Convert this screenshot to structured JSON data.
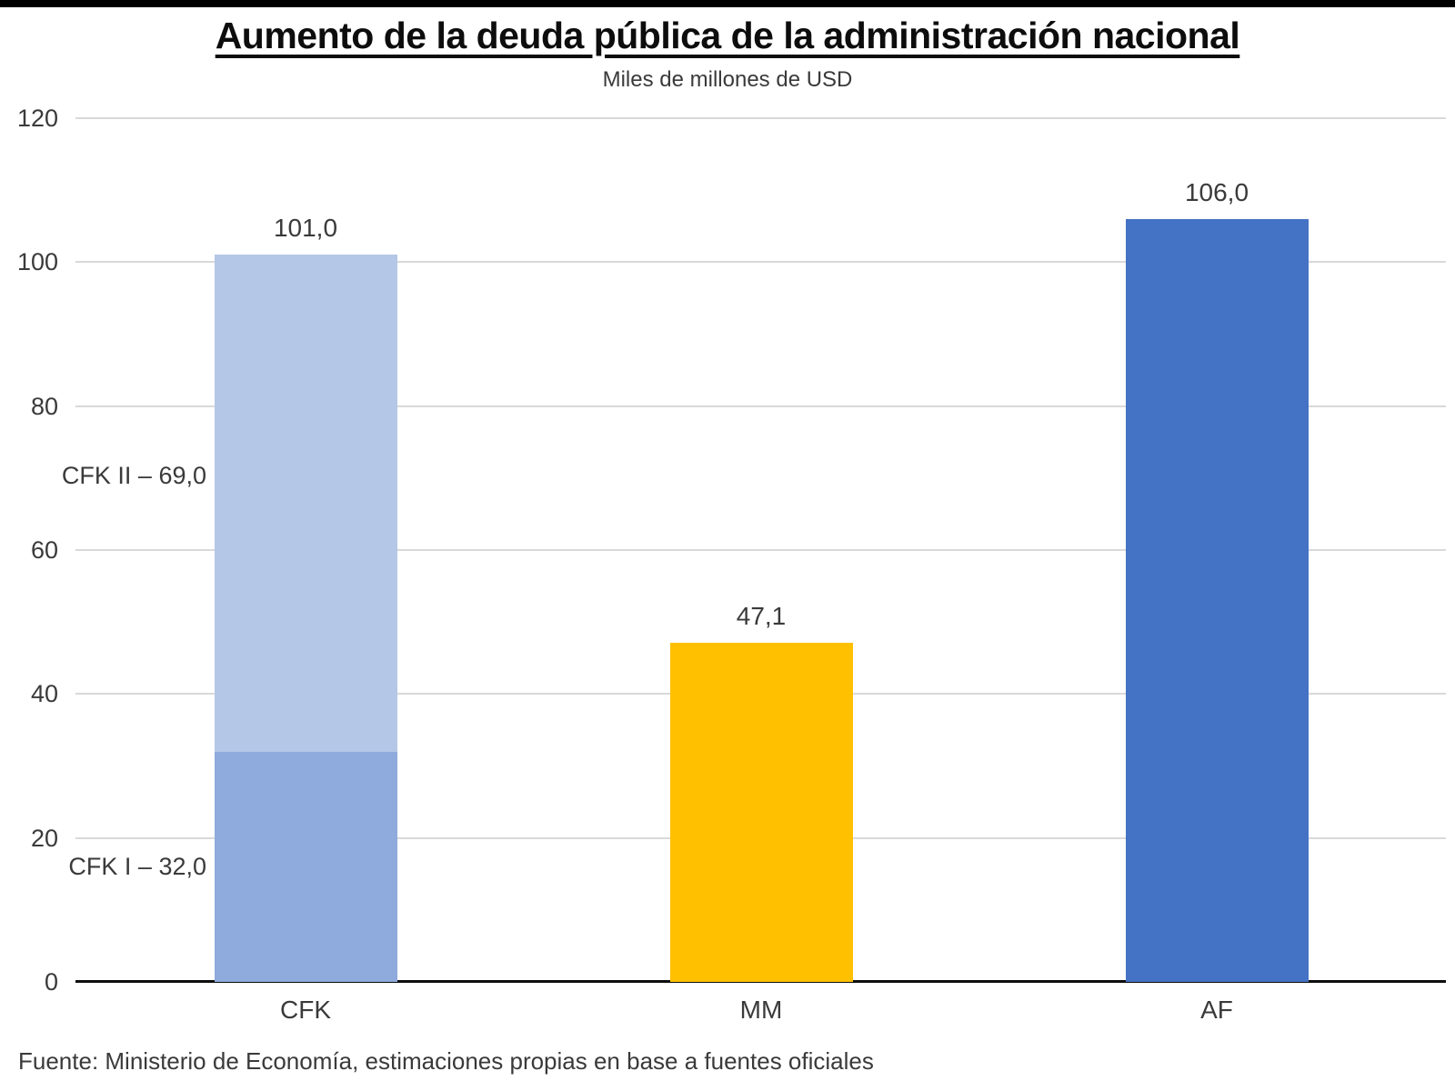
{
  "page": {
    "title": "Aumento de la deuda pública de la administración nacional",
    "subtitle": "Miles de millones de USD",
    "source": "Fuente: Ministerio de Economía, estimaciones propias en base a fuentes oficiales"
  },
  "chart_data": {
    "type": "bar",
    "title": "Aumento de la deuda pública de la administración nacional",
    "subtitle": "Miles de millones de USD",
    "ylabel": "Miles de millones de USD",
    "ylim": [
      0,
      120
    ],
    "grid": true,
    "y_ticks": [
      {
        "value": 0,
        "label": "0"
      },
      {
        "value": 20,
        "label": "20"
      },
      {
        "value": 40,
        "label": "40"
      },
      {
        "value": 60,
        "label": "60"
      },
      {
        "value": 80,
        "label": "80"
      },
      {
        "value": 100,
        "label": "100"
      },
      {
        "value": 120,
        "label": "120"
      }
    ],
    "categories": [
      "CFK",
      "MM",
      "AF"
    ],
    "bars": [
      {
        "category": "CFK",
        "total": 101.0,
        "total_label": "101,0",
        "segments": [
          {
            "name": "CFK I",
            "value": 32.0,
            "label": "CFK I – 32,0",
            "color": "#8FAADC"
          },
          {
            "name": "CFK II",
            "value": 69.0,
            "label": "CFK II – 69,0",
            "color": "#B4C7E7"
          }
        ]
      },
      {
        "category": "MM",
        "total": 47.1,
        "total_label": "47,1",
        "segments": [
          {
            "name": "MM",
            "value": 47.1,
            "color": "#FFC000"
          }
        ]
      },
      {
        "category": "AF",
        "total": 106.0,
        "total_label": "106,0",
        "segments": [
          {
            "name": "AF",
            "value": 106.0,
            "color": "#4472C4"
          }
        ]
      }
    ],
    "colors": {
      "cfk_i": "#8FAADC",
      "cfk_ii": "#B4C7E7",
      "mm": "#FFC000",
      "af": "#4472C4",
      "gridline": "#D9D9D9",
      "axis": "#0D0D0D"
    }
  }
}
